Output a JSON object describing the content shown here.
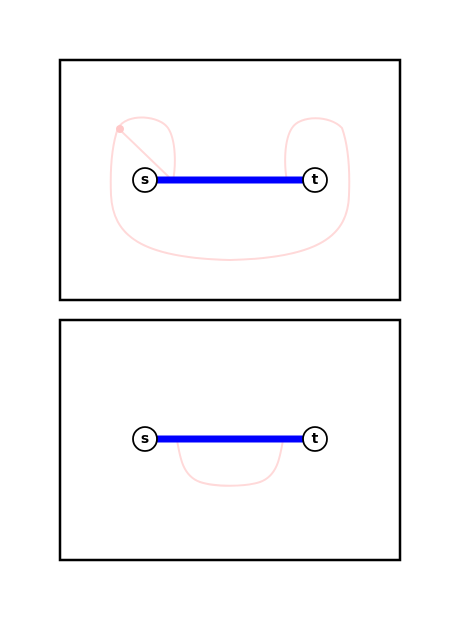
{
  "colors": {
    "frame": "#000000",
    "edge": "#0000ff",
    "faint_curve": "#ffd9d9",
    "marker": "#ffc8c8",
    "node_fill": "#ffffff"
  },
  "top_panel": {
    "source_label": "s",
    "target_label": "t"
  },
  "bottom_panel": {
    "source_label": "s",
    "target_label": "t"
  }
}
